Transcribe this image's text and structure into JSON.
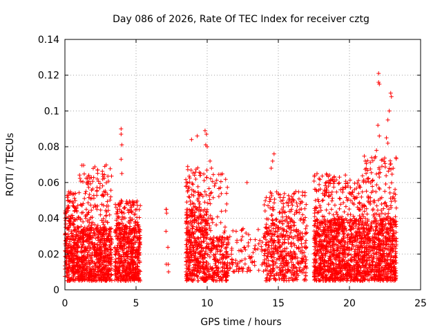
{
  "chart_data": {
    "type": "scatter",
    "title": "Day 086 of 2026, Rate Of TEC Index for receiver cztg",
    "xlabel": "GPS time / hours",
    "ylabel": "ROTI / TECUs",
    "xlim": [
      0,
      25
    ],
    "ylim": [
      0,
      0.14
    ],
    "xticks": [
      "0",
      "5",
      "10",
      "15",
      "20",
      "25"
    ],
    "yticks": [
      "0",
      "0.02",
      "0.04",
      "0.06",
      "0.08",
      "0.1",
      "0.12",
      "0.14"
    ],
    "grid": true,
    "marker": "+",
    "series_color": "#ff0000",
    "density_bands": [
      {
        "x_start": 0.0,
        "x_end": 1.0,
        "y_core": [
          0.005,
          0.04
        ],
        "y_max": 0.055,
        "level": "dense"
      },
      {
        "x_start": 1.0,
        "x_end": 3.3,
        "y_core": [
          0.005,
          0.035
        ],
        "y_max": 0.07,
        "level": "dense"
      },
      {
        "x_start": 3.5,
        "x_end": 5.3,
        "y_core": [
          0.005,
          0.035
        ],
        "y_max": 0.05,
        "level": "dense"
      },
      {
        "x_start": 7.1,
        "x_end": 7.3,
        "y_core": [
          0.01,
          0.045
        ],
        "y_max": 0.045,
        "level": "sparse"
      },
      {
        "x_start": 8.5,
        "x_end": 10.0,
        "y_core": [
          0.005,
          0.045
        ],
        "y_max": 0.07,
        "level": "dense"
      },
      {
        "x_start": 10.0,
        "x_end": 11.5,
        "y_core": [
          0.005,
          0.03
        ],
        "y_max": 0.065,
        "level": "medium"
      },
      {
        "x_start": 11.5,
        "x_end": 14.0,
        "y_core": [
          0.01,
          0.03
        ],
        "y_max": 0.035,
        "level": "sparse"
      },
      {
        "x_start": 14.0,
        "x_end": 17.0,
        "y_core": [
          0.005,
          0.04
        ],
        "y_max": 0.055,
        "level": "medium"
      },
      {
        "x_start": 17.5,
        "x_end": 21.0,
        "y_core": [
          0.005,
          0.04
        ],
        "y_max": 0.065,
        "level": "dense"
      },
      {
        "x_start": 21.0,
        "x_end": 23.3,
        "y_core": [
          0.005,
          0.04
        ],
        "y_max": 0.075,
        "level": "dense"
      }
    ],
    "highlighted_points": [
      {
        "x": 3.95,
        "y": 0.09
      },
      {
        "x": 3.95,
        "y": 0.087
      },
      {
        "x": 4.0,
        "y": 0.081
      },
      {
        "x": 3.95,
        "y": 0.073
      },
      {
        "x": 4.0,
        "y": 0.065
      },
      {
        "x": 8.9,
        "y": 0.084
      },
      {
        "x": 9.3,
        "y": 0.086
      },
      {
        "x": 9.85,
        "y": 0.089
      },
      {
        "x": 9.95,
        "y": 0.087
      },
      {
        "x": 9.9,
        "y": 0.081
      },
      {
        "x": 10.0,
        "y": 0.08
      },
      {
        "x": 10.2,
        "y": 0.072
      },
      {
        "x": 10.3,
        "y": 0.068
      },
      {
        "x": 12.8,
        "y": 0.06
      },
      {
        "x": 14.7,
        "y": 0.076
      },
      {
        "x": 14.6,
        "y": 0.072
      },
      {
        "x": 14.5,
        "y": 0.068
      },
      {
        "x": 21.9,
        "y": 0.078
      },
      {
        "x": 22.0,
        "y": 0.092
      },
      {
        "x": 22.1,
        "y": 0.086
      },
      {
        "x": 22.05,
        "y": 0.121
      },
      {
        "x": 22.05,
        "y": 0.116
      },
      {
        "x": 22.1,
        "y": 0.115
      },
      {
        "x": 22.7,
        "y": 0.095
      },
      {
        "x": 22.8,
        "y": 0.1
      },
      {
        "x": 22.9,
        "y": 0.11
      },
      {
        "x": 22.95,
        "y": 0.108
      },
      {
        "x": 22.6,
        "y": 0.085
      },
      {
        "x": 22.7,
        "y": 0.082
      }
    ]
  }
}
